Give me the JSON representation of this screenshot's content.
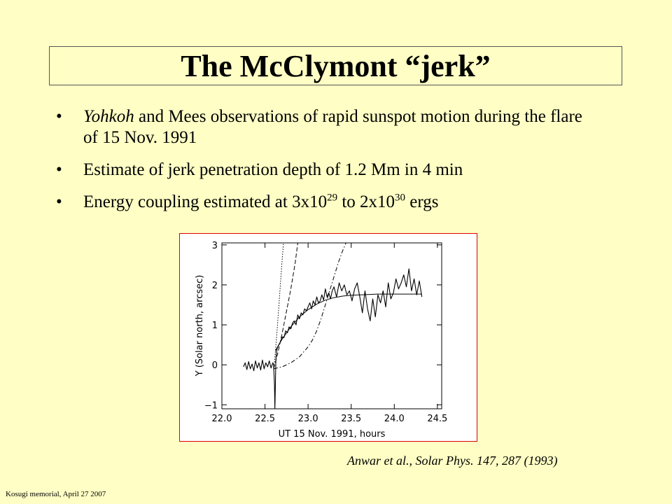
{
  "slide": {
    "title": "The McClymont “jerk”",
    "bullets": [
      {
        "italic": "Yohkoh",
        "text": " and Mees observations of rapid sunspot motion during the flare of 15 Nov. 1991"
      },
      {
        "text": "Estimate of jerk penetration depth of 1.2 Mm in 4 min"
      },
      {
        "pre": "Energy coupling estimated at 3x10",
        "sup1": "29",
        "mid": " to 2x10",
        "sup2": "30",
        "post": " ergs"
      }
    ],
    "citation": "Anwar et al., Solar Phys. 147, 287 (1993)",
    "footer": "Kosugi memorial, April 27 2007"
  },
  "chart_data": {
    "type": "line",
    "xlabel": "UT 15 Nov. 1991, hours",
    "ylabel": "Y (Solar north, arcsec)",
    "xlim": [
      22.0,
      24.55
    ],
    "ylim": [
      -1.1,
      3.05
    ],
    "xticks": [
      22.0,
      22.5,
      23.0,
      23.5,
      24.0,
      24.5
    ],
    "xtick_labels": [
      "22.0",
      "22.5",
      "23.0",
      "23.5",
      "24.0",
      "24.5"
    ],
    "yticks": [
      -1,
      0,
      1,
      2,
      3
    ],
    "ytick_labels": [
      "−1",
      "0",
      "1",
      "2",
      "3"
    ],
    "series": [
      {
        "style": "observed",
        "x": [
          22.25,
          22.27,
          22.29,
          22.31,
          22.33,
          22.35,
          22.37,
          22.39,
          22.41,
          22.43,
          22.45,
          22.47,
          22.49,
          22.51,
          22.53,
          22.55,
          22.57,
          22.59,
          22.6,
          22.61,
          22.615,
          22.62,
          22.625,
          22.63,
          22.64,
          22.66,
          22.68,
          22.7,
          22.72,
          22.74,
          22.76,
          22.78,
          22.8,
          22.82,
          22.84,
          22.86,
          22.88,
          22.9,
          22.92,
          22.94,
          22.96,
          22.98,
          23.0,
          23.02,
          23.04,
          23.06,
          23.08,
          23.1,
          23.12,
          23.14,
          23.16,
          23.18,
          23.2,
          23.22,
          23.24,
          23.26,
          23.28,
          23.3,
          23.33,
          23.36,
          23.39,
          23.42,
          23.45,
          23.48,
          23.51,
          23.54,
          23.57,
          23.6,
          23.63,
          23.66,
          23.69,
          23.72,
          23.75,
          23.78,
          23.81,
          23.84,
          23.87,
          23.9,
          23.93,
          23.96,
          23.99,
          24.02,
          24.05,
          24.08,
          24.11,
          24.14,
          24.17,
          24.2,
          24.23,
          24.26,
          24.29,
          24.32
        ],
        "y": [
          -0.05,
          0.05,
          -0.12,
          0.08,
          -0.1,
          0.02,
          -0.15,
          0.1,
          -0.08,
          0.05,
          -0.13,
          0.12,
          -0.1,
          0.05,
          -0.05,
          0.1,
          -0.08,
          0.05,
          0.0,
          -0.5,
          -1.1,
          -0.6,
          0.05,
          0.25,
          0.4,
          0.5,
          0.58,
          0.7,
          0.68,
          0.85,
          0.8,
          0.95,
          0.9,
          1.05,
          1.1,
          1.0,
          1.25,
          1.15,
          1.3,
          1.25,
          1.4,
          1.35,
          1.45,
          1.55,
          1.4,
          1.6,
          1.5,
          1.7,
          1.55,
          1.6,
          1.75,
          1.62,
          1.9,
          1.7,
          1.8,
          1.65,
          1.85,
          1.95,
          1.7,
          2.05,
          1.85,
          2.0,
          1.75,
          1.85,
          1.6,
          1.9,
          2.05,
          1.7,
          1.3,
          1.85,
          1.4,
          1.1,
          1.65,
          1.2,
          1.75,
          1.55,
          1.85,
          1.45,
          2.05,
          1.65,
          1.8,
          2.15,
          1.9,
          2.05,
          2.25,
          1.95,
          2.4,
          1.85,
          2.15,
          1.75,
          2.1,
          1.7
        ]
      },
      {
        "style": "fit-solid",
        "x": [
          22.62,
          22.7,
          22.8,
          22.9,
          23.0,
          23.1,
          23.2,
          23.3,
          23.4,
          23.5,
          23.6,
          23.7,
          23.8,
          23.9,
          24.0,
          24.1,
          24.2,
          24.32
        ],
        "y": [
          0.35,
          0.65,
          0.95,
          1.2,
          1.38,
          1.52,
          1.62,
          1.68,
          1.72,
          1.74,
          1.75,
          1.76,
          1.77,
          1.77,
          1.77,
          1.77,
          1.77,
          1.77
        ]
      },
      {
        "style": "fit-dotted",
        "x": [
          22.6,
          22.62,
          22.64,
          22.66,
          22.68,
          22.7,
          22.715
        ],
        "y": [
          -0.12,
          0.3,
          0.85,
          1.45,
          2.05,
          2.65,
          3.05
        ]
      },
      {
        "style": "fit-dashed",
        "x": [
          22.6,
          22.65,
          22.7,
          22.75,
          22.8,
          22.85,
          22.88
        ],
        "y": [
          -0.1,
          0.3,
          0.8,
          1.35,
          1.9,
          2.55,
          3.05
        ]
      },
      {
        "style": "fit-dashdot",
        "x": [
          22.6,
          22.7,
          22.8,
          22.9,
          23.0,
          23.05,
          23.1,
          23.15,
          23.2,
          23.25,
          23.3,
          23.35,
          23.4,
          23.44
        ],
        "y": [
          -0.1,
          -0.05,
          0.05,
          0.2,
          0.45,
          0.62,
          0.85,
          1.15,
          1.5,
          1.85,
          2.2,
          2.55,
          2.85,
          3.05
        ]
      }
    ]
  }
}
